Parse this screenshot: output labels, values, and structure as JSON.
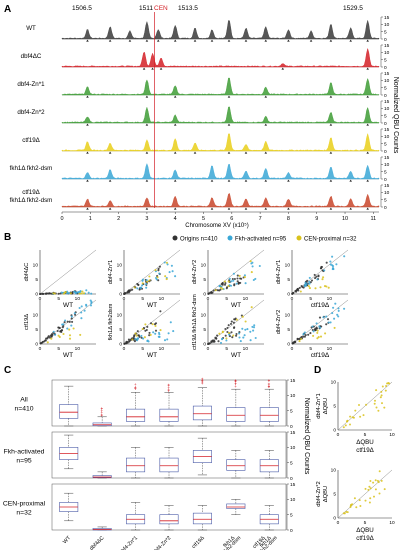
{
  "panels": {
    "A": {
      "letter": "A",
      "peak_positions": [
        "1506.5",
        "1511",
        "1513.5",
        "1529.5"
      ],
      "cen_label": "CEN",
      "right_label": "Normalized QBU Counts",
      "x_title": "Chromosome XV (x10⁵)",
      "x_ticks": [
        "0",
        "1",
        "2",
        "3",
        "4",
        "5",
        "6",
        "7",
        "8",
        "9",
        "10",
        "11"
      ],
      "y_ticks": [
        "15",
        "10",
        "5",
        "0"
      ],
      "tracks": [
        {
          "label_lines": [
            "WT"
          ],
          "color": "#3a3a3a"
        },
        {
          "label_lines": [
            "dbf4ΔC"
          ],
          "color": "#d42027"
        },
        {
          "label_lines": [
            "dbf4-Zn*1"
          ],
          "color": "#3e9c35"
        },
        {
          "label_lines": [
            "dbf4-Zn*2"
          ],
          "color": "#3e9c35"
        },
        {
          "label_lines": [
            "ctf19Δ"
          ],
          "color": "#e9cf1a"
        },
        {
          "label_lines": [
            "fkh1Δ fkh2-dsm"
          ],
          "color": "#3aa7d6"
        },
        {
          "label_lines": [
            "ctf19Δ",
            "fkh1Δ fkh2-dsm"
          ],
          "color": "#c8452a"
        }
      ]
    },
    "B": {
      "letter": "B",
      "legend": [
        {
          "label": "Origins n=410",
          "color": "#333333"
        },
        {
          "label": "Fkh-activated n=95",
          "color": "#3aa7d6"
        },
        {
          "label": "CEN-proximal n=32",
          "color": "#d9c21c"
        }
      ],
      "ticks": [
        "0",
        "5",
        "10"
      ],
      "plots": [
        {
          "ylabel": "dbf4ΔC",
          "xlabel": "WT"
        },
        {
          "ylabel": "dbf4-Zn*1",
          "xlabel": "WT"
        },
        {
          "ylabel": "dbf4-Zn*2",
          "xlabel": "WT"
        },
        {
          "ylabel": "dbf4-Zn*1",
          "xlabel": "ctf19Δ"
        },
        {
          "ylabel": "ctf19Δ",
          "xlabel": "WT"
        },
        {
          "ylabel": "fkh1Δ fkh2dsm",
          "xlabel": "WT"
        },
        {
          "ylabel": "ctf19Δ fkh1Δ fkh2-dsm",
          "xlabel": "WT"
        },
        {
          "ylabel": "dbf4-Zn*2",
          "xlabel": "ctf19Δ"
        }
      ]
    },
    "C": {
      "letter": "C",
      "right_label": "Normalized QBU Counts",
      "y_ticks": [
        "15",
        "10",
        "5",
        "0"
      ],
      "rows": [
        {
          "label_lines": [
            "All",
            "n=410"
          ]
        },
        {
          "label_lines": [
            "Fkh-activated",
            "n=95"
          ]
        },
        {
          "label_lines": [
            "CEN-proximal",
            "n=32"
          ]
        }
      ],
      "strains": [
        "WT",
        "dbf4ΔC",
        "dbf4-Zn*1",
        "dbf4-Zn*2",
        "ctf19Δ",
        "fkh1Δ fkh2-dsm",
        "ctf19Δ fkh1Δ fkh2-dsm"
      ],
      "strain_lines": [
        [
          "WT"
        ],
        [
          "dbf4ΔC"
        ],
        [
          "dbf4-Zn*1"
        ],
        [
          "dbf4-Zn*2"
        ],
        [
          "ctf19Δ"
        ],
        [
          "fkh1Δ",
          "fkh2-dsm"
        ],
        [
          "ctf19Δ",
          "fkh1Δ",
          "fkh2-dsm"
        ]
      ]
    },
    "D": {
      "letter": "D",
      "ticks": [
        "0",
        "5",
        "10"
      ],
      "plots": [
        {
          "ylabel_lines": [
            "dbf4-Zn*1",
            "ΔQBU"
          ],
          "xlabel_lines": [
            "ΔQBU",
            "ctf19Δ"
          ]
        },
        {
          "ylabel_lines": [
            "dbf4-Zn*2",
            "ΔQBU"
          ],
          "xlabel_lines": [
            "ΔQBU",
            "ctf19Δ"
          ]
        }
      ]
    }
  },
  "chart_data": [
    {
      "type": "area",
      "title": "",
      "xlabel": "Chromosome XV (x10⁵)",
      "ylabel": "Normalized QBU Counts",
      "xlim": [
        0,
        11.2
      ],
      "ylim": [
        0,
        15
      ],
      "series": [
        {
          "name": "WT",
          "peaks": [
            [
              0.9,
              6
            ],
            [
              1.7,
              8
            ],
            [
              2.4,
              5
            ],
            [
              3.0,
              11
            ],
            [
              3.4,
              6
            ],
            [
              4.0,
              9
            ],
            [
              4.7,
              7
            ],
            [
              5.3,
              6
            ],
            [
              5.9,
              13
            ],
            [
              6.5,
              7
            ],
            [
              7.2,
              8
            ],
            [
              8.0,
              6
            ],
            [
              8.8,
              5
            ],
            [
              9.5,
              10
            ],
            [
              10.2,
              7
            ],
            [
              10.8,
              12
            ]
          ]
        },
        {
          "name": "dbf4ΔC",
          "peaks": [
            [
              2.9,
              10
            ],
            [
              3.2,
              9
            ],
            [
              3.5,
              6
            ],
            [
              7.8,
              2
            ],
            [
              10.8,
              12
            ]
          ]
        },
        {
          "name": "dbf4-Zn*1",
          "peaks": [
            [
              0.9,
              5
            ],
            [
              3.0,
              10
            ],
            [
              4.0,
              6
            ],
            [
              5.9,
              12
            ],
            [
              7.2,
              5
            ],
            [
              9.5,
              8
            ],
            [
              10.8,
              11
            ]
          ]
        },
        {
          "name": "dbf4-Zn*2",
          "peaks": [
            [
              0.9,
              4
            ],
            [
              3.0,
              10
            ],
            [
              4.0,
              5
            ],
            [
              5.9,
              11
            ],
            [
              7.2,
              4
            ],
            [
              9.5,
              7
            ],
            [
              10.8,
              10
            ]
          ]
        },
        {
          "name": "ctf19Δ",
          "peaks": [
            [
              0.9,
              6
            ],
            [
              1.7,
              5
            ],
            [
              3.0,
              7
            ],
            [
              4.0,
              8
            ],
            [
              4.7,
              5
            ],
            [
              5.9,
              12
            ],
            [
              6.5,
              4
            ],
            [
              7.2,
              6
            ],
            [
              9.5,
              9
            ],
            [
              10.8,
              11
            ]
          ]
        },
        {
          "name": "fkh1Δ fkh2-dsm",
          "peaks": [
            [
              0.9,
              4
            ],
            [
              1.7,
              6
            ],
            [
              3.0,
              10
            ],
            [
              4.0,
              6
            ],
            [
              5.3,
              9
            ],
            [
              5.9,
              10
            ],
            [
              6.5,
              5
            ],
            [
              7.2,
              7
            ],
            [
              8.0,
              4
            ],
            [
              9.5,
              8
            ],
            [
              10.2,
              5
            ],
            [
              10.8,
              9
            ]
          ]
        },
        {
          "name": "ctf19Δ fkh1Δ fkh2-dsm",
          "peaks": [
            [
              0.9,
              5
            ],
            [
              1.7,
              4
            ],
            [
              3.0,
              6
            ],
            [
              4.0,
              7
            ],
            [
              5.3,
              6
            ],
            [
              5.9,
              9
            ],
            [
              6.5,
              5
            ],
            [
              7.2,
              6
            ],
            [
              8.0,
              5
            ],
            [
              9.5,
              7
            ],
            [
              10.2,
              5
            ],
            [
              10.8,
              8
            ]
          ]
        }
      ],
      "cen_position": 3.27
    },
    {
      "type": "scatter",
      "title": "",
      "xlim": [
        0,
        15
      ],
      "ylim": [
        0,
        15
      ],
      "plots": [
        {
          "x": "WT",
          "y": "dbf4ΔC",
          "mode": "suppressed"
        },
        {
          "x": "WT",
          "y": "dbf4-Zn*1",
          "mode": "partial"
        },
        {
          "x": "WT",
          "y": "dbf4-Zn*2",
          "mode": "partial"
        },
        {
          "x": "ctf19Δ",
          "y": "dbf4-Zn*1",
          "mode": "near"
        },
        {
          "x": "WT",
          "y": "ctf19Δ",
          "mode": "near"
        },
        {
          "x": "WT",
          "y": "fkh1Δ fkh2dsm",
          "mode": "fkhdown"
        },
        {
          "x": "WT",
          "y": "ctf19Δ fkh1Δ fkh2-dsm",
          "mode": "fkhdown"
        },
        {
          "x": "ctf19Δ",
          "y": "dbf4-Zn*2",
          "mode": "near"
        }
      ]
    },
    {
      "type": "box",
      "title": "",
      "ylabel": "Normalized QBU Counts",
      "ylim": [
        0,
        15
      ],
      "categories": [
        "WT",
        "dbf4ΔC",
        "dbf4-Zn*1",
        "dbf4-Zn*2",
        "ctf19Δ",
        "fkh1Δ fkh2-dsm",
        "ctf19Δ fkh1Δ fkh2-dsm"
      ],
      "groups": [
        {
          "name": "All",
          "boxes": [
            [
              0,
              2.5,
              4.5,
              7,
              13
            ],
            [
              0,
              0.1,
              0.4,
              1,
              3
            ],
            [
              0,
              1.5,
              3,
              5.5,
              11
            ],
            [
              0,
              1.5,
              3,
              5.5,
              11
            ],
            [
              0,
              2,
              4,
              6.5,
              12.5
            ],
            [
              0,
              1.5,
              3.5,
              6,
              12
            ],
            [
              0,
              1.5,
              3.5,
              6,
              12
            ]
          ]
        },
        {
          "name": "Fkh-activated",
          "boxes": [
            [
              3,
              6,
              8,
              10,
              14
            ],
            [
              0,
              0.1,
              0.3,
              0.8,
              2
            ],
            [
              0,
              2,
              4,
              6.5,
              10
            ],
            [
              0,
              2,
              4,
              6.5,
              10
            ],
            [
              1,
              5,
              7,
              9,
              13
            ],
            [
              0,
              2.5,
              4,
              6,
              9
            ],
            [
              0,
              2,
              4,
              6,
              9
            ]
          ]
        },
        {
          "name": "CEN-proximal",
          "boxes": [
            [
              3,
              6,
              7.5,
              9,
              12
            ],
            [
              0,
              0,
              0.2,
              0.5,
              1
            ],
            [
              0,
              2,
              3.5,
              5,
              9
            ],
            [
              0,
              2,
              3,
              5,
              8
            ],
            [
              0,
              2,
              3.5,
              5.5,
              8
            ],
            [
              5,
              7,
              7.5,
              8.5,
              10
            ],
            [
              0,
              2,
              3.5,
              5,
              8
            ]
          ]
        }
      ]
    },
    {
      "type": "scatter",
      "title": "",
      "xlim": [
        0,
        10
      ],
      "ylim": [
        0,
        10
      ],
      "plots": [
        {
          "x": "ΔQBU ctf19Δ",
          "y": "dbf4-Zn*1 ΔQBU"
        },
        {
          "x": "ΔQBU ctf19Δ",
          "y": "dbf4-Zn*2 ΔQBU"
        }
      ]
    }
  ]
}
